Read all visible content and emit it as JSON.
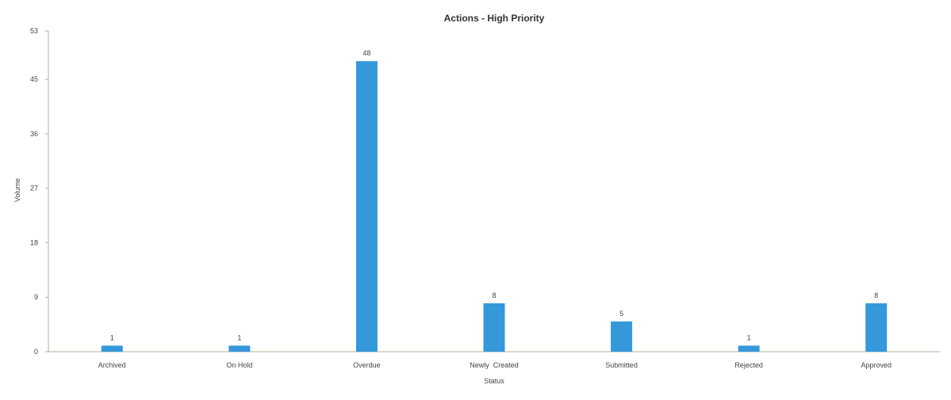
{
  "chart_data": {
    "type": "bar",
    "title": "Actions - High Priority",
    "xlabel": "Status",
    "ylabel": "Volume",
    "categories": [
      "Archived",
      "On Hold",
      "Overdue",
      "Newly  Created",
      "Submitted",
      "Rejected",
      "Approved"
    ],
    "values": [
      1,
      1,
      48,
      8,
      5,
      1,
      8
    ],
    "ylim": [
      0,
      53
    ],
    "yticks": [
      0,
      9,
      18,
      27,
      36,
      45,
      53
    ],
    "grid": false,
    "legend": "none",
    "bar_color": "#3598db",
    "axis_color": "#b0b09a"
  }
}
